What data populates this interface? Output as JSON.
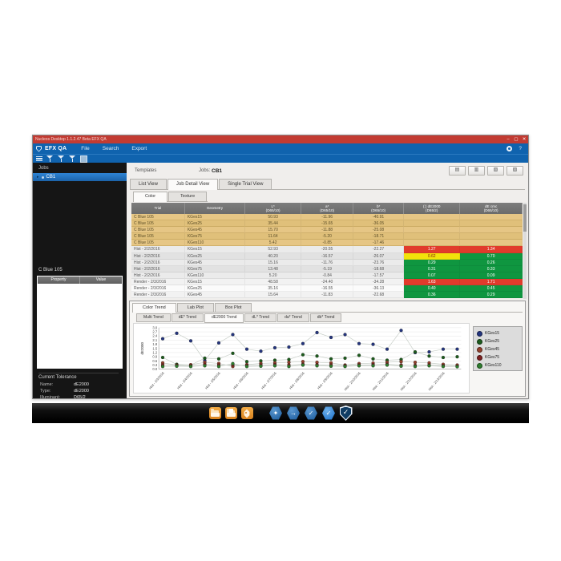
{
  "window": {
    "titlebar": {
      "title": "Nucleos Desktop  1.1.2.47 Beta    EFX QA",
      "minimize": "–",
      "maximize": "▢",
      "close": "✕"
    },
    "menubar": {
      "app": "EFX QA",
      "menus": [
        "File",
        "Search",
        "Export"
      ],
      "help": "?"
    }
  },
  "sidebar": {
    "jobs_label": "Jobs",
    "job_item": {
      "caret": "▸",
      "label": "CB1"
    },
    "sample_label": "C Blue 105",
    "property_panel": {
      "headers": [
        "Property",
        "Value"
      ]
    },
    "tolerance": {
      "title": "Current Tolerance",
      "rows": [
        {
          "label": "Name:",
          "value": "dE2000"
        },
        {
          "label": "Type:",
          "value": "dE2000"
        },
        {
          "label": "Illuminant:",
          "value": "D65/2"
        }
      ]
    }
  },
  "content_header": {
    "templates_label": "Templates",
    "jobs_label": "Jobs:",
    "job_name": "CB1",
    "toolbar_buttons": [
      {
        "name": "print-button",
        "glyph": "▤"
      },
      {
        "name": "export-pdf-button",
        "glyph": "▥"
      },
      {
        "name": "export-excel-button",
        "glyph": "▧"
      },
      {
        "name": "report-button",
        "glyph": "▨"
      }
    ]
  },
  "view_tabs": [
    {
      "label": "List View",
      "active": false
    },
    {
      "label": "Job Detail View",
      "active": true
    },
    {
      "label": "Single Trial View",
      "active": false
    }
  ],
  "mode_tabs": [
    {
      "label": "Color",
      "active": true
    },
    {
      "label": "Texture",
      "active": false
    }
  ],
  "table": {
    "columns": [
      {
        "l1": "Trial",
        "l2": ""
      },
      {
        "l1": "Geometry",
        "l2": ""
      },
      {
        "l1": "L*",
        "l2": "(D65/10)"
      },
      {
        "l1": "a*",
        "l2": "(D65/10)"
      },
      {
        "l1": "b*",
        "l2": "(D65/10)"
      },
      {
        "l1": "(:) dE2000",
        "l2": "(D65/2)"
      },
      {
        "l1": "dE cmc",
        "l2": "(D65/10)"
      }
    ],
    "rows": [
      {
        "trial": "C Blue 105",
        "geometry": "KGes15",
        "L": "50.93",
        "a": "-11.96",
        "b": "-40.91",
        "de2000": "",
        "de2000_status": "",
        "decmc": "",
        "decmc_status": "",
        "type": "standard"
      },
      {
        "trial": "C Blue 105",
        "geometry": "KGes25",
        "L": "35.44",
        "a": "-15.65",
        "b": "-36.05",
        "de2000": "",
        "de2000_status": "",
        "decmc": "",
        "decmc_status": "",
        "type": "standard"
      },
      {
        "trial": "C Blue 105",
        "geometry": "KGes45",
        "L": "15.70",
        "a": "-11.88",
        "b": "-25.08",
        "de2000": "",
        "de2000_status": "",
        "decmc": "",
        "decmc_status": "",
        "type": "standard"
      },
      {
        "trial": "C Blue 105",
        "geometry": "KGes75",
        "L": "11.64",
        "a": "-5.20",
        "b": "-18.71",
        "de2000": "",
        "de2000_status": "",
        "decmc": "",
        "decmc_status": "",
        "type": "standard"
      },
      {
        "trial": "C Blue 105",
        "geometry": "KGes110",
        "L": "5.42",
        "a": "-0.85",
        "b": "-17.46",
        "de2000": "",
        "de2000_status": "",
        "decmc": "",
        "decmc_status": "",
        "type": "standard"
      },
      {
        "trial": "Hist - 2/2/2016",
        "geometry": "KGes15",
        "L": "52.93",
        "a": "-20.55",
        "b": "-22.27",
        "de2000": "1.27",
        "de2000_status": "red",
        "decmc": "1.34",
        "decmc_status": "red",
        "type": "hist"
      },
      {
        "trial": "Hist - 2/2/2016",
        "geometry": "KGes25",
        "L": "40.20",
        "a": "-16.57",
        "b": "-26.07",
        "de2000": "0.62",
        "de2000_status": "yellow",
        "decmc": "0.70",
        "decmc_status": "green",
        "type": "hist"
      },
      {
        "trial": "Hist - 2/2/2016",
        "geometry": "KGes45",
        "L": "15.16",
        "a": "-11.76",
        "b": "-23.76",
        "de2000": "0.29",
        "de2000_status": "green",
        "decmc": "0.26",
        "decmc_status": "green",
        "type": "hist"
      },
      {
        "trial": "Hist - 2/2/2016",
        "geometry": "KGes75",
        "L": "13.48",
        "a": "-5.19",
        "b": "-18.68",
        "de2000": "0.31",
        "de2000_status": "green",
        "decmc": "0.33",
        "decmc_status": "green",
        "type": "hist"
      },
      {
        "trial": "Hist - 2/2/2016",
        "geometry": "KGes110",
        "L": "5.20",
        "a": "-0.84",
        "b": "-17.57",
        "de2000": "0.07",
        "de2000_status": "green",
        "decmc": "0.09",
        "decmc_status": "green",
        "type": "hist"
      },
      {
        "trial": "Render - 2/3/2016",
        "geometry": "KGes15",
        "L": "48.58",
        "a": "-24.40",
        "b": "-34.28",
        "de2000": "1.63",
        "de2000_status": "red",
        "decmc": "1.71",
        "decmc_status": "red",
        "type": "render"
      },
      {
        "trial": "Render - 2/3/2016",
        "geometry": "KGes25",
        "L": "35.16",
        "a": "-16.55",
        "b": "-36.13",
        "de2000": "0.40",
        "de2000_status": "green",
        "decmc": "0.45",
        "decmc_status": "green",
        "type": "render"
      },
      {
        "trial": "Render - 2/3/2016",
        "geometry": "KGes45",
        "L": "15.64",
        "a": "-11.83",
        "b": "-22.68",
        "de2000": "0.36",
        "de2000_status": "green",
        "decmc": "0.29",
        "decmc_status": "green",
        "type": "render"
      }
    ]
  },
  "chart_tabs": [
    {
      "label": "Color Trend",
      "active": true
    },
    {
      "label": "Lab Plot",
      "active": false
    },
    {
      "label": "Box Plot",
      "active": false
    }
  ],
  "trend_tabs": [
    {
      "label": "Multi Trend",
      "active": false
    },
    {
      "label": "dE* Trend",
      "active": false
    },
    {
      "label": "dE2000 Trend",
      "active": true
    },
    {
      "label": "dL* Trend",
      "active": false
    },
    {
      "label": "da* Trend",
      "active": false
    },
    {
      "label": "db* Trend",
      "active": false
    }
  ],
  "chart_data": {
    "type": "line",
    "title": "",
    "xlabel": "",
    "ylabel": "dE2000",
    "ylim": [
      0,
      3.0
    ],
    "ytick_step": 0.3,
    "grid": true,
    "legend_position": "right",
    "x_label_every": 2,
    "x_labels": [
      "Hist - 2/3/2016",
      "Hist - 2/4/2016",
      "Hist - 2/5/2016",
      "Hist - 2/6/2016",
      "Hist - 2/7/2016",
      "Hist - 2/8/2016",
      "Hist - 2/9/2016",
      "Hist - 2/10/2016",
      "Hist - 2/11/2016",
      "Hist - 2/12/2016",
      "Hist - 2/13/2016"
    ],
    "series": [
      {
        "name": "KGes15",
        "color": "#24357f",
        "values": [
          2.2,
          2.6,
          2.05,
          0.62,
          1.9,
          2.5,
          1.45,
          1.3,
          1.55,
          1.6,
          1.85,
          2.65,
          2.3,
          2.5,
          1.85,
          1.8,
          1.45,
          2.8,
          1.2,
          1.25,
          1.45,
          1.45
        ]
      },
      {
        "name": "KGes25",
        "color": "#1d5c1d",
        "values": [
          0.85,
          0.35,
          0.3,
          0.8,
          0.75,
          1.15,
          0.55,
          0.6,
          0.65,
          0.7,
          1.05,
          0.95,
          0.75,
          0.8,
          1.0,
          0.75,
          0.65,
          0.7,
          1.25,
          0.95,
          0.85,
          0.9
        ]
      },
      {
        "name": "KGes45",
        "color": "#93402c",
        "values": [
          0.45,
          0.3,
          0.32,
          0.5,
          0.42,
          0.2,
          0.33,
          0.42,
          0.45,
          0.5,
          0.55,
          0.5,
          0.45,
          0.3,
          0.4,
          0.44,
          0.5,
          0.55,
          0.5,
          0.45,
          0.35,
          0.3
        ]
      },
      {
        "name": "KGes75",
        "color": "#7c1f1f",
        "values": [
          0.3,
          0.28,
          0.25,
          0.35,
          0.3,
          0.3,
          0.28,
          0.3,
          0.33,
          0.3,
          0.35,
          0.32,
          0.3,
          0.25,
          0.3,
          0.32,
          0.35,
          0.3,
          0.28,
          0.3,
          0.25,
          0.22
        ]
      },
      {
        "name": "KGes110",
        "color": "#2e7d2e",
        "values": [
          0.2,
          0.22,
          0.2,
          0.25,
          0.2,
          0.4,
          0.2,
          0.22,
          0.25,
          0.2,
          0.3,
          0.25,
          0.22,
          0.2,
          0.25,
          0.25,
          0.3,
          0.22,
          0.2,
          0.25,
          0.2,
          0.18
        ]
      }
    ]
  },
  "taskbar": {
    "icons": [
      {
        "name": "folder-icon",
        "style": "folder"
      },
      {
        "name": "documents-folder-icon",
        "style": "folder-doc"
      },
      {
        "name": "tag-icon",
        "style": "tag"
      },
      {
        "name": "hex-compare-icon",
        "style": "hex",
        "glyph": "✦"
      },
      {
        "name": "hex-import-icon",
        "style": "hex",
        "glyph": "→"
      },
      {
        "name": "hex-approve-icon",
        "style": "hex",
        "glyph": "✓"
      },
      {
        "name": "check-badge-icon",
        "style": "hex-bright",
        "glyph": "✓"
      },
      {
        "name": "efx-shield-icon",
        "style": "shield",
        "glyph": "✓"
      }
    ]
  }
}
